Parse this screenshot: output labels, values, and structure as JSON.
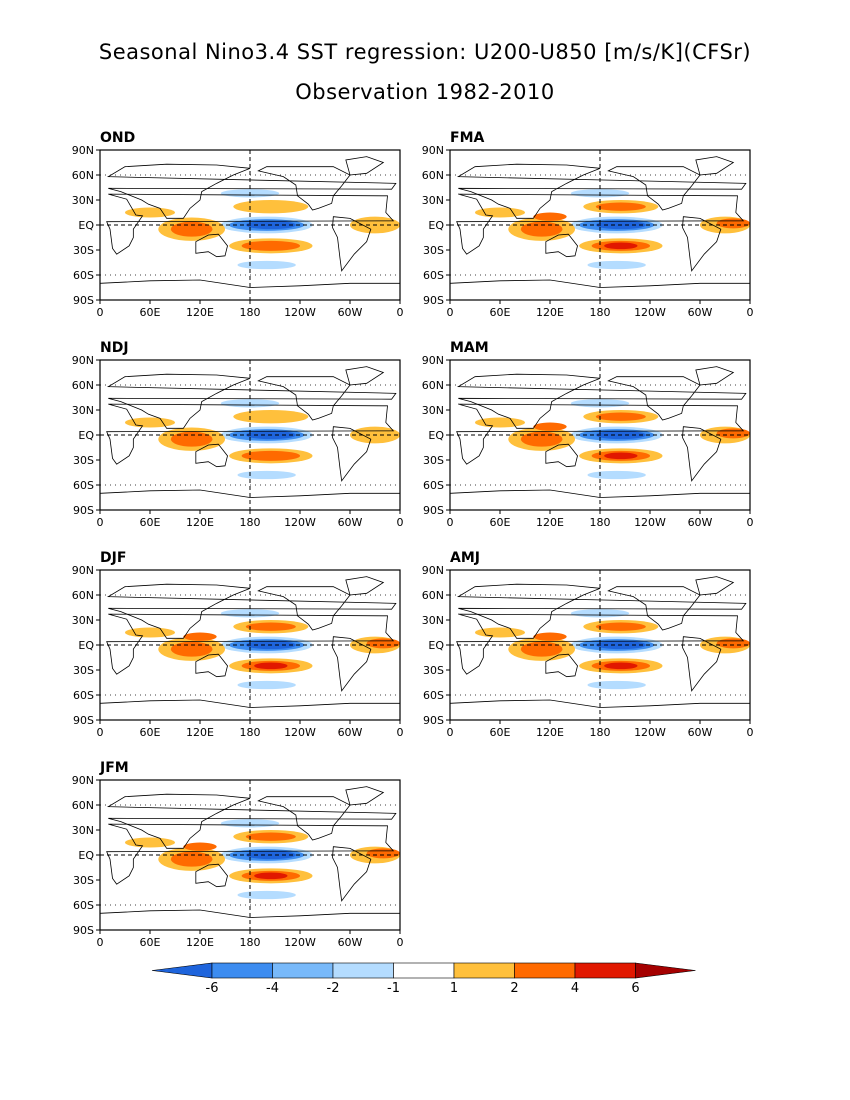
{
  "title": "Seasonal Nino3.4 SST regression: U200-U850 [m/s/K](CFSr)",
  "subtitle": "Observation 1982-2010",
  "axes": {
    "lat_ticks": [
      "90N",
      "60N",
      "30N",
      "EQ",
      "30S",
      "60S",
      "90S"
    ],
    "lon_ticks": [
      "0",
      "60E",
      "120E",
      "180",
      "120W",
      "60W",
      "0"
    ]
  },
  "panels": [
    {
      "label": "OND"
    },
    {
      "label": "FMA"
    },
    {
      "label": "NDJ"
    },
    {
      "label": "MAM"
    },
    {
      "label": "DJF"
    },
    {
      "label": "AMJ"
    },
    {
      "label": "JFM"
    }
  ],
  "colorbar": {
    "tick_labels": [
      "-6",
      "-4",
      "-2",
      "-1",
      "1",
      "2",
      "4",
      "6"
    ],
    "colors": [
      "#1e64dc",
      "#3c8cf0",
      "#78b9fa",
      "#b4dcff",
      "#ffffff",
      "#ffc03c",
      "#ff6a00",
      "#e11800",
      "#a50000"
    ]
  },
  "colors": {
    "land_outline": "#000000",
    "neg_strong": "#1e64dc",
    "neg_mid": "#3c8cf0",
    "neg_weak": "#b4dcff",
    "pos_weak": "#ffc03c",
    "pos_mid": "#ff6a00",
    "pos_strong": "#e11800"
  }
}
